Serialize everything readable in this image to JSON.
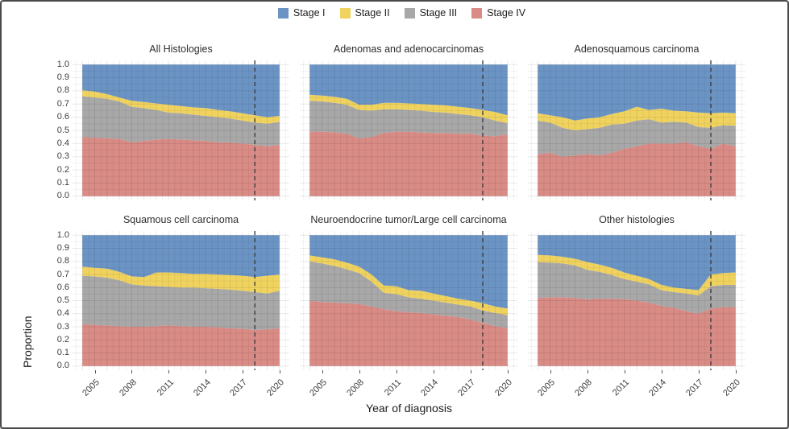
{
  "chart_data": {
    "type": "area",
    "subtype": "stacked-proportional-faceted",
    "xlabel": "Year of diagnosis",
    "ylabel": "Proportion",
    "ylim": [
      0,
      1
    ],
    "grid": true,
    "legend_position": "top",
    "reference_line_year": 2018,
    "reference_line_style": "dashed",
    "x": [
      2004,
      2005,
      2006,
      2007,
      2008,
      2009,
      2010,
      2011,
      2012,
      2013,
      2014,
      2015,
      2016,
      2017,
      2018,
      2019,
      2020
    ],
    "x_tick_labels": [
      "2005",
      "2008",
      "2011",
      "2014",
      "2017",
      "2020"
    ],
    "y_tick_labels": [
      "1.0",
      "0.9",
      "0.8",
      "0.7",
      "0.6",
      "0.5",
      "0.4",
      "0.3",
      "0.2",
      "0.1",
      "0.0"
    ],
    "legend": [
      {
        "label": "Stage I",
        "color": "#6b94c5"
      },
      {
        "label": "Stage II",
        "color": "#f0d35f"
      },
      {
        "label": "Stage III",
        "color": "#a8a8a8"
      },
      {
        "label": "Stage IV",
        "color": "#d98b85"
      }
    ],
    "stack_order_bottom_to_top": [
      "Stage IV",
      "Stage III",
      "Stage II",
      "Stage I"
    ],
    "facets": [
      {
        "title": "All Histologies",
        "series": {
          "Stage IV": [
            0.45,
            0.445,
            0.44,
            0.435,
            0.41,
            0.42,
            0.43,
            0.435,
            0.43,
            0.425,
            0.42,
            0.41,
            0.41,
            0.4,
            0.39,
            0.38,
            0.39
          ],
          "Stage III": [
            0.31,
            0.305,
            0.3,
            0.285,
            0.27,
            0.25,
            0.225,
            0.2,
            0.2,
            0.195,
            0.19,
            0.19,
            0.18,
            0.175,
            0.17,
            0.17,
            0.175
          ],
          "Stage II": [
            0.045,
            0.045,
            0.035,
            0.03,
            0.045,
            0.045,
            0.05,
            0.06,
            0.055,
            0.055,
            0.06,
            0.055,
            0.055,
            0.055,
            0.055,
            0.05,
            0.045
          ],
          "Stage I": [
            0.195,
            0.205,
            0.225,
            0.25,
            0.275,
            0.285,
            0.295,
            0.305,
            0.315,
            0.325,
            0.33,
            0.345,
            0.355,
            0.37,
            0.385,
            0.4,
            0.39
          ]
        }
      },
      {
        "title": "Adenomas and adenocarcinomas",
        "series": {
          "Stage IV": [
            0.49,
            0.49,
            0.485,
            0.475,
            0.44,
            0.45,
            0.48,
            0.49,
            0.49,
            0.485,
            0.48,
            0.48,
            0.475,
            0.475,
            0.46,
            0.455,
            0.47
          ],
          "Stage III": [
            0.235,
            0.23,
            0.225,
            0.22,
            0.215,
            0.2,
            0.18,
            0.17,
            0.165,
            0.165,
            0.16,
            0.155,
            0.15,
            0.14,
            0.14,
            0.12,
            0.085
          ],
          "Stage II": [
            0.045,
            0.045,
            0.045,
            0.045,
            0.04,
            0.045,
            0.05,
            0.05,
            0.05,
            0.05,
            0.055,
            0.055,
            0.055,
            0.055,
            0.055,
            0.065,
            0.06
          ],
          "Stage I": [
            0.23,
            0.235,
            0.245,
            0.26,
            0.305,
            0.305,
            0.29,
            0.29,
            0.295,
            0.3,
            0.305,
            0.31,
            0.32,
            0.33,
            0.345,
            0.36,
            0.385
          ]
        }
      },
      {
        "title": "Adenosquamous carcinoma",
        "series": {
          "Stage IV": [
            0.32,
            0.33,
            0.3,
            0.31,
            0.32,
            0.31,
            0.33,
            0.36,
            0.38,
            0.4,
            0.4,
            0.4,
            0.41,
            0.38,
            0.36,
            0.4,
            0.38
          ],
          "Stage III": [
            0.255,
            0.23,
            0.22,
            0.19,
            0.19,
            0.21,
            0.215,
            0.19,
            0.195,
            0.185,
            0.16,
            0.165,
            0.15,
            0.145,
            0.16,
            0.14,
            0.155
          ],
          "Stage II": [
            0.055,
            0.055,
            0.08,
            0.075,
            0.08,
            0.08,
            0.08,
            0.095,
            0.105,
            0.07,
            0.105,
            0.085,
            0.085,
            0.11,
            0.11,
            0.095,
            0.095
          ],
          "Stage I": [
            0.37,
            0.385,
            0.4,
            0.425,
            0.41,
            0.4,
            0.375,
            0.355,
            0.32,
            0.345,
            0.335,
            0.35,
            0.355,
            0.365,
            0.37,
            0.365,
            0.37
          ]
        }
      },
      {
        "title": "Squamous cell carcinoma",
        "series": {
          "Stage IV": [
            0.32,
            0.315,
            0.31,
            0.305,
            0.3,
            0.3,
            0.305,
            0.31,
            0.305,
            0.3,
            0.3,
            0.295,
            0.29,
            0.285,
            0.275,
            0.28,
            0.29
          ],
          "Stage III": [
            0.37,
            0.37,
            0.365,
            0.35,
            0.325,
            0.315,
            0.305,
            0.295,
            0.295,
            0.3,
            0.295,
            0.295,
            0.295,
            0.29,
            0.29,
            0.275,
            0.285
          ],
          "Stage II": [
            0.07,
            0.065,
            0.07,
            0.065,
            0.06,
            0.065,
            0.105,
            0.11,
            0.11,
            0.105,
            0.11,
            0.11,
            0.11,
            0.115,
            0.115,
            0.135,
            0.125
          ],
          "Stage I": [
            0.24,
            0.25,
            0.255,
            0.28,
            0.315,
            0.32,
            0.285,
            0.285,
            0.29,
            0.295,
            0.295,
            0.3,
            0.305,
            0.31,
            0.32,
            0.31,
            0.3
          ]
        }
      },
      {
        "title": "Neuroendocrine tumor/Large cell carcinoma",
        "series": {
          "Stage IV": [
            0.5,
            0.49,
            0.485,
            0.48,
            0.475,
            0.455,
            0.435,
            0.42,
            0.41,
            0.405,
            0.395,
            0.385,
            0.375,
            0.355,
            0.33,
            0.305,
            0.29
          ],
          "Stage III": [
            0.3,
            0.295,
            0.28,
            0.26,
            0.235,
            0.19,
            0.125,
            0.13,
            0.115,
            0.11,
            0.105,
            0.1,
            0.095,
            0.1,
            0.095,
            0.1,
            0.1
          ],
          "Stage II": [
            0.045,
            0.045,
            0.05,
            0.05,
            0.05,
            0.055,
            0.055,
            0.06,
            0.055,
            0.06,
            0.055,
            0.05,
            0.045,
            0.045,
            0.055,
            0.05,
            0.05
          ],
          "Stage I": [
            0.155,
            0.17,
            0.185,
            0.21,
            0.24,
            0.3,
            0.385,
            0.39,
            0.42,
            0.425,
            0.445,
            0.465,
            0.485,
            0.5,
            0.52,
            0.545,
            0.56
          ]
        }
      },
      {
        "title": "Other histologies",
        "series": {
          "Stage IV": [
            0.52,
            0.525,
            0.525,
            0.52,
            0.51,
            0.515,
            0.515,
            0.51,
            0.5,
            0.485,
            0.46,
            0.445,
            0.42,
            0.4,
            0.44,
            0.45,
            0.45
          ],
          "Stage III": [
            0.275,
            0.265,
            0.26,
            0.25,
            0.225,
            0.205,
            0.18,
            0.155,
            0.145,
            0.14,
            0.12,
            0.12,
            0.135,
            0.14,
            0.17,
            0.17,
            0.17
          ],
          "Stage II": [
            0.055,
            0.055,
            0.05,
            0.05,
            0.06,
            0.055,
            0.055,
            0.05,
            0.045,
            0.04,
            0.04,
            0.035,
            0.035,
            0.04,
            0.09,
            0.09,
            0.095
          ],
          "Stage I": [
            0.15,
            0.155,
            0.165,
            0.18,
            0.205,
            0.225,
            0.25,
            0.285,
            0.31,
            0.335,
            0.38,
            0.4,
            0.41,
            0.42,
            0.3,
            0.29,
            0.285
          ]
        }
      }
    ]
  }
}
